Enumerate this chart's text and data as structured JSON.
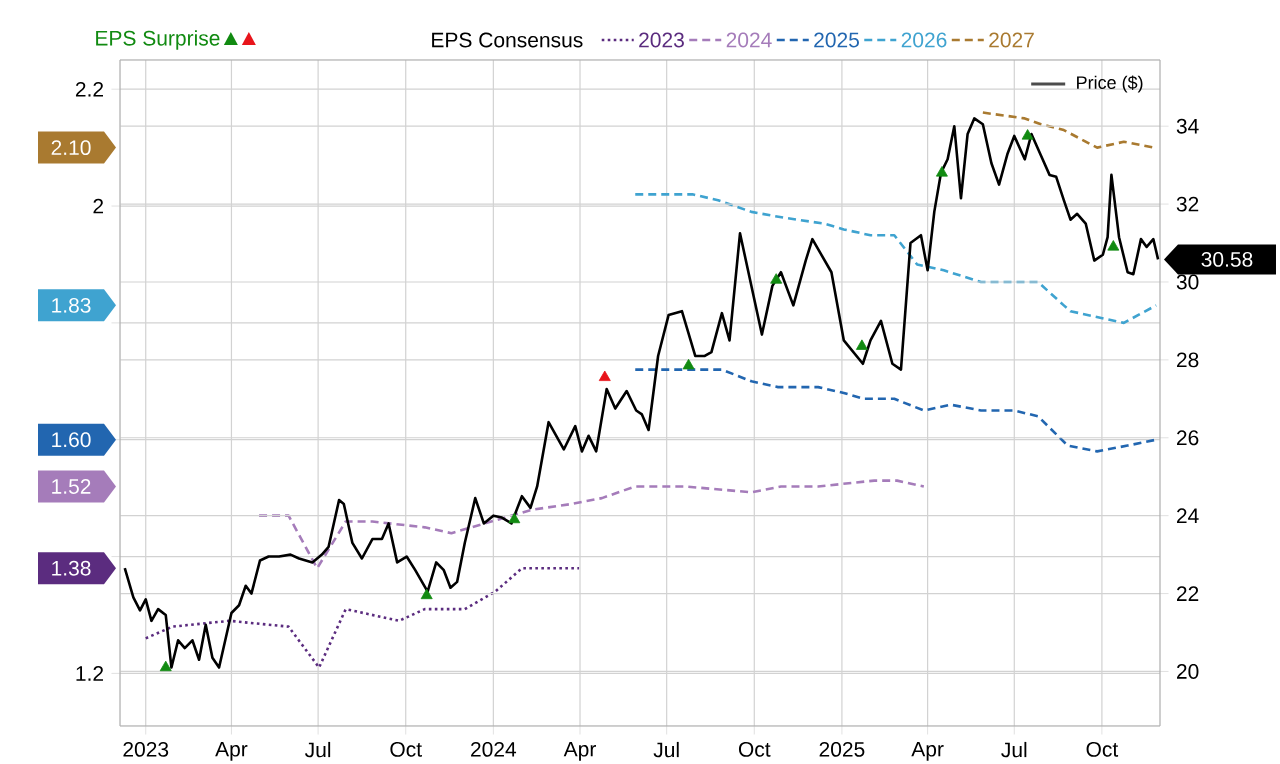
{
  "chart_data": {
    "type": "line",
    "legend_title": "EPS Consensus",
    "legend": "top",
    "grid": true,
    "xlim": [
      "2022-12-05",
      "2025-12-01"
    ],
    "xticks": [
      {
        "value": "2023-01-01",
        "label": "2023"
      },
      {
        "value": "2023-04-01",
        "label": "Apr"
      },
      {
        "value": "2023-07-01",
        "label": "Jul"
      },
      {
        "value": "2023-10-01",
        "label": "Oct"
      },
      {
        "value": "2024-01-01",
        "label": "2024"
      },
      {
        "value": "2024-04-01",
        "label": "Apr"
      },
      {
        "value": "2024-07-01",
        "label": "Jul"
      },
      {
        "value": "2024-10-01",
        "label": "Oct"
      },
      {
        "value": "2025-01-01",
        "label": "2025"
      },
      {
        "value": "2025-04-01",
        "label": "Apr"
      },
      {
        "value": "2025-07-01",
        "label": "Jul"
      },
      {
        "value": "2025-10-01",
        "label": "Oct"
      }
    ],
    "ylim": [
      1.11,
      2.25
    ],
    "yticks": [
      1.2,
      {
        "value": 1.4,
        "label": null
      },
      {
        "value": 1.6,
        "label": null
      },
      {
        "value": 1.8,
        "label": null
      },
      2,
      2.2
    ],
    "y2lim": [
      18.6,
      35.7
    ],
    "y2ticks": [
      20,
      22,
      24,
      26,
      28,
      30,
      32,
      34
    ],
    "series": [
      {
        "name": "2023",
        "color": "#5b2c7f",
        "line_style": "dotted",
        "x": [
          "2023-01-01",
          "2023-01-29",
          "2023-03-30",
          "2023-05-31",
          "2023-07-02",
          "2023-07-30",
          "2023-09-24",
          "2023-10-21",
          "2023-12-02",
          "2024-01-03",
          "2024-01-31",
          "2024-02-25",
          "2024-03-31"
        ],
        "values": [
          1.26,
          1.28,
          1.29,
          1.28,
          1.21,
          1.31,
          1.29,
          1.31,
          1.31,
          1.34,
          1.38,
          1.38,
          1.38
        ]
      },
      {
        "name": "2024",
        "color": "#a57cba",
        "line_style": "dashed",
        "x": [
          "2023-04-30",
          "2023-05-31",
          "2023-06-30",
          "2023-07-30",
          "2023-08-27",
          "2023-10-21",
          "2023-11-18",
          "2023-12-30",
          "2024-02-10",
          "2024-03-23",
          "2024-04-24",
          "2024-05-29",
          "2024-07-20",
          "2024-09-28",
          "2024-10-29",
          "2024-12-07",
          "2025-02-04",
          "2025-02-28",
          "2025-03-28"
        ],
        "values": [
          1.47,
          1.47,
          1.38,
          1.46,
          1.46,
          1.45,
          1.44,
          1.46,
          1.48,
          1.49,
          1.5,
          1.52,
          1.52,
          1.51,
          1.52,
          1.52,
          1.53,
          1.53,
          1.52
        ]
      },
      {
        "name": "2025",
        "color": "#2266b0",
        "line_style": "dashed",
        "x": [
          "2024-05-29",
          "2024-08-28",
          "2024-09-28",
          "2024-10-26",
          "2024-12-07",
          "2025-01-03",
          "2025-01-24",
          "2025-02-25",
          "2025-03-28",
          "2025-04-25",
          "2025-05-27",
          "2025-07-01",
          "2025-07-26",
          "2025-08-26",
          "2025-09-26",
          "2025-10-28",
          "2025-11-27"
        ],
        "values": [
          1.72,
          1.72,
          1.7,
          1.69,
          1.69,
          1.68,
          1.67,
          1.67,
          1.65,
          1.66,
          1.65,
          1.65,
          1.64,
          1.59,
          1.58,
          1.59,
          1.6
        ]
      },
      {
        "name": "2026",
        "color": "#3fa3d0",
        "line_style": "dashed",
        "x": [
          "2024-05-29",
          "2024-07-28",
          "2024-08-24",
          "2024-09-28",
          "2024-11-01",
          "2024-12-13",
          "2025-01-03",
          "2025-01-31",
          "2025-02-25",
          "2025-03-21",
          "2025-04-18",
          "2025-05-27",
          "2025-07-26",
          "2025-08-22",
          "2025-08-29",
          "2025-10-24",
          "2025-11-27"
        ],
        "values": [
          2.02,
          2.02,
          2.01,
          1.99,
          1.98,
          1.97,
          1.96,
          1.95,
          1.95,
          1.9,
          1.89,
          1.87,
          1.87,
          1.83,
          1.82,
          1.8,
          1.83
        ]
      },
      {
        "name": "2027",
        "color": "#a97a30",
        "line_style": "dashed",
        "x": [
          "2025-05-29",
          "2025-07-12",
          "2025-07-29",
          "2025-08-22",
          "2025-09-26",
          "2025-10-24",
          "2025-11-25"
        ],
        "values": [
          2.16,
          2.15,
          2.14,
          2.13,
          2.1,
          2.11,
          2.1
        ]
      },
      {
        "name": "Price ($)",
        "color": "#000000",
        "line_style": "solid",
        "axis": "y2",
        "x": [
          "2022-12-10",
          "2022-12-19",
          "2022-12-26",
          "2023-01-01",
          "2023-01-07",
          "2023-01-14",
          "2023-01-22",
          "2023-01-28",
          "2023-02-04",
          "2023-02-11",
          "2023-02-19",
          "2023-02-26",
          "2023-03-05",
          "2023-03-12",
          "2023-03-19",
          "2023-04-01",
          "2023-04-09",
          "2023-04-16",
          "2023-04-22",
          "2023-05-01",
          "2023-05-10",
          "2023-05-21",
          "2023-06-02",
          "2023-06-11",
          "2023-06-25",
          "2023-07-05",
          "2023-07-12",
          "2023-07-23",
          "2023-07-28",
          "2023-08-06",
          "2023-08-16",
          "2023-08-27",
          "2023-09-06",
          "2023-09-13",
          "2023-09-22",
          "2023-10-02",
          "2023-10-11",
          "2023-10-24",
          "2023-11-02",
          "2023-11-10",
          "2023-11-17",
          "2023-11-24",
          "2023-12-02",
          "2023-12-13",
          "2023-12-22",
          "2024-01-01",
          "2024-01-10",
          "2024-01-20",
          "2024-01-31",
          "2024-02-09",
          "2024-02-16",
          "2024-02-28",
          "2024-03-15",
          "2024-03-27",
          "2024-04-03",
          "2024-04-10",
          "2024-04-18",
          "2024-04-29",
          "2024-05-08",
          "2024-05-20",
          "2024-05-30",
          "2024-06-05",
          "2024-06-12",
          "2024-06-22",
          "2024-07-03",
          "2024-07-17",
          "2024-07-31",
          "2024-08-10",
          "2024-08-17",
          "2024-08-28",
          "2024-09-05",
          "2024-09-16",
          "2024-10-09",
          "2024-10-20",
          "2024-10-29",
          "2024-11-11",
          "2024-11-24",
          "2024-12-01",
          "2024-12-21",
          "2025-01-03",
          "2025-01-23",
          "2025-01-31",
          "2025-02-11",
          "2025-02-23",
          "2025-03-04",
          "2025-03-14",
          "2025-03-25",
          "2025-04-01",
          "2025-04-08",
          "2025-04-15",
          "2025-04-22",
          "2025-04-29",
          "2025-05-06",
          "2025-05-13",
          "2025-05-20",
          "2025-05-29",
          "2025-06-07",
          "2025-06-15",
          "2025-06-24",
          "2025-07-01",
          "2025-07-12",
          "2025-07-19",
          "2025-07-29",
          "2025-08-07",
          "2025-08-14",
          "2025-08-22",
          "2025-08-29",
          "2025-09-05",
          "2025-09-14",
          "2025-09-23",
          "2025-10-02",
          "2025-10-07",
          "2025-10-11",
          "2025-10-19",
          "2025-10-28",
          "2025-11-03",
          "2025-11-11",
          "2025-11-17",
          "2025-11-24",
          "2025-11-29"
        ],
        "values": [
          22.65,
          21.9,
          21.57,
          21.85,
          21.3,
          21.6,
          21.45,
          20.1,
          20.8,
          20.6,
          20.8,
          20.3,
          21.2,
          20.35,
          20.1,
          21.5,
          21.7,
          22.2,
          22.0,
          22.85,
          22.95,
          22.95,
          23.0,
          22.9,
          22.8,
          23.0,
          23.2,
          24.4,
          24.3,
          23.3,
          22.9,
          23.4,
          23.4,
          23.8,
          22.8,
          22.95,
          22.6,
          22.05,
          22.8,
          22.6,
          22.15,
          22.3,
          23.3,
          24.45,
          23.8,
          24.0,
          23.95,
          23.8,
          24.5,
          24.2,
          24.75,
          26.4,
          25.7,
          26.3,
          25.65,
          26.05,
          25.65,
          27.25,
          26.75,
          27.2,
          26.7,
          26.6,
          26.2,
          28.1,
          29.15,
          29.25,
          28.1,
          28.1,
          28.2,
          29.2,
          28.5,
          31.25,
          28.65,
          29.9,
          30.25,
          29.4,
          30.55,
          31.1,
          30.25,
          28.5,
          27.9,
          28.5,
          29.0,
          27.9,
          27.75,
          31.0,
          31.2,
          30.3,
          31.8,
          32.8,
          33.15,
          34.0,
          32.15,
          33.8,
          34.2,
          34.05,
          33.05,
          32.5,
          33.3,
          33.75,
          33.15,
          33.8,
          33.25,
          32.75,
          32.7,
          32.1,
          31.6,
          31.75,
          31.5,
          30.55,
          30.7,
          31.15,
          32.75,
          31.15,
          30.25,
          30.2,
          31.1,
          30.9,
          31.1,
          30.58
        ]
      },
      {
        "name": "EPS Surprise",
        "type": "scatter",
        "marker": "triangle",
        "color": "#118a11",
        "axis": "y2",
        "x": [
          "2023-01-22",
          "2023-10-23",
          "2024-01-23",
          "2024-07-24",
          "2024-10-24",
          "2025-01-22",
          "2025-04-16",
          "2025-07-15",
          "2025-10-13"
        ],
        "values": [
          20.1,
          21.95,
          23.9,
          27.85,
          30.05,
          28.35,
          32.8,
          33.75,
          30.9
        ]
      },
      {
        "type": "scatter",
        "marker": "triangle",
        "color": "#e8141b",
        "axis": "y2",
        "x": [
          "2024-04-27"
        ],
        "values": [
          27.55
        ]
      }
    ],
    "annotations": [
      "1.38",
      "1.52",
      "1.60",
      "1.83",
      "2.10",
      "30.58"
    ]
  }
}
